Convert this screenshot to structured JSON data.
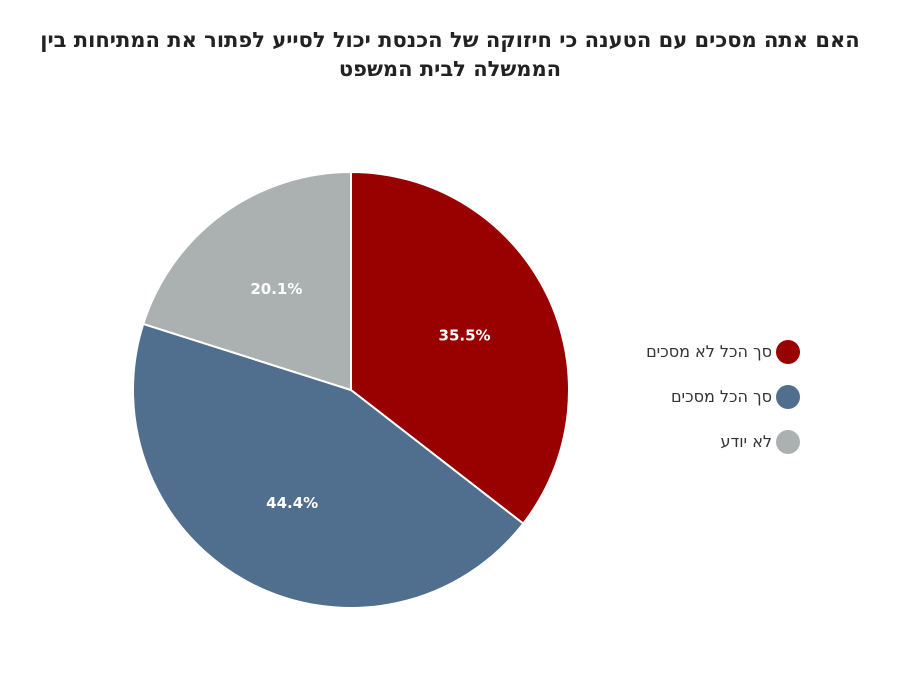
{
  "title": {
    "line1": "האם אתה מסכים עם הטענה כי חיזוקה של הכנסת יכול לסייע לפתור את המתיחות בין",
    "line2": "הממשלה לבית המשפט"
  },
  "chart_data": {
    "type": "pie",
    "title": "האם אתה מסכים עם הטענה כי חיזוקה של הכנסת יכול לסייע לפתור את המתיחות בין הממשלה לבית המשפט",
    "categories": [
      "סך הכל לא מסכים",
      "סך הכל מסכים",
      "לא יודע"
    ],
    "values": [
      35.5,
      44.4,
      20.1
    ],
    "labels": [
      "35.5%",
      "44.4%",
      "20.1%"
    ],
    "colors": [
      "#990000",
      "#506e8e",
      "#abb1b1"
    ],
    "legend_position": "right"
  }
}
